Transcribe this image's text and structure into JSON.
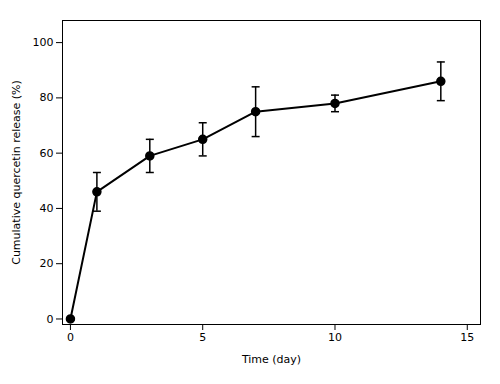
{
  "chart_data": {
    "type": "line",
    "x": [
      0,
      1,
      3,
      5,
      7,
      10,
      14
    ],
    "values": [
      0,
      46,
      59,
      65,
      75,
      78,
      86
    ],
    "yerr": [
      0,
      7,
      6,
      6,
      9,
      3,
      7
    ],
    "xlabel": "Time (day)",
    "ylabel": "Cumulative quercetin release (%)",
    "xlim": [
      -0.3,
      15.5
    ],
    "ylim": [
      -2,
      108
    ],
    "xticks": [
      0,
      5,
      10,
      15
    ],
    "yticks": [
      0,
      20,
      40,
      60,
      80,
      100
    ],
    "color": "#000000",
    "marker": "o",
    "grid": false
  }
}
